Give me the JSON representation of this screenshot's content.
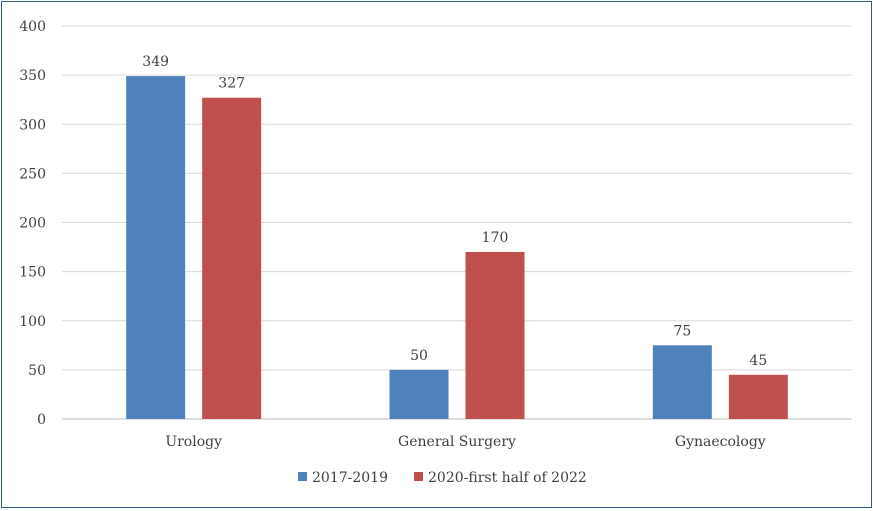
{
  "chart_data": {
    "type": "bar",
    "title": "",
    "xlabel": "",
    "ylabel": "",
    "categories": [
      "Urology",
      "General Surgery",
      "Gynaecology"
    ],
    "series": [
      {
        "name": "2017-2019",
        "values": [
          349,
          50,
          75
        ],
        "color": "#4f81bd"
      },
      {
        "name": "2020-first half of 2022",
        "values": [
          327,
          170,
          45
        ],
        "color": "#c0504d"
      }
    ],
    "ylim": [
      0,
      400
    ],
    "yticks": [
      "0",
      "50",
      "100",
      "150",
      "200",
      "250",
      "300",
      "350",
      "400"
    ],
    "grid": true,
    "legend_position": "bottom"
  }
}
